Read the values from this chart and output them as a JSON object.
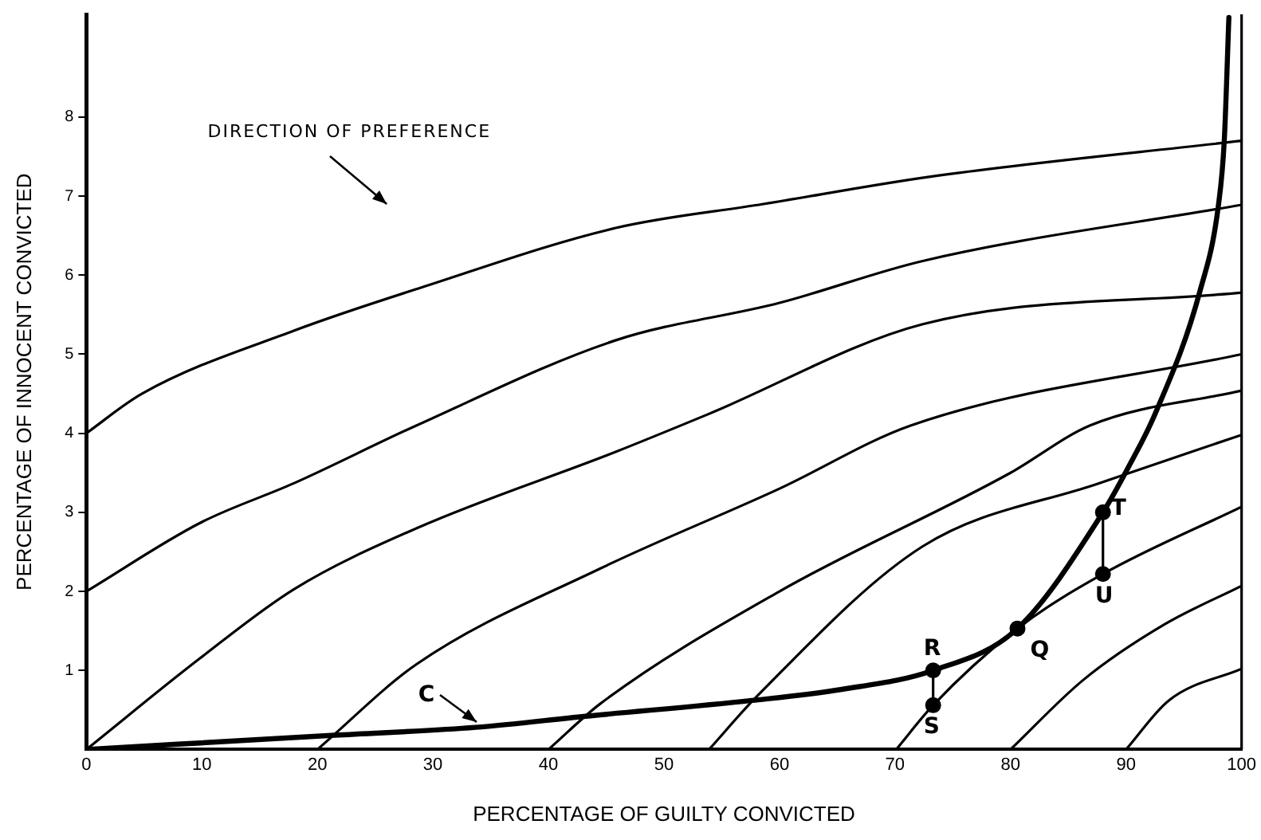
{
  "chart_data": {
    "type": "line",
    "xlabel": "PERCENTAGE OF GUILTY CONVICTED",
    "ylabel": "PERCENTAGE OF INNOCENT CONVICTED",
    "xlim": [
      0,
      100
    ],
    "xticks": [
      0,
      10,
      20,
      30,
      40,
      50,
      60,
      70,
      80,
      90,
      100
    ],
    "ylim": [
      0,
      9.3
    ],
    "yticks": [
      1,
      2,
      3,
      4,
      5,
      6,
      7,
      8
    ],
    "grid": false,
    "legend": false,
    "marker": "none",
    "line_style": "solid",
    "series": [
      {
        "color": "#000000",
        "x": [
          0,
          4.8,
          18,
          28.9,
          45.9,
          58.6,
          73.2,
          100
        ],
        "values": [
          4.0,
          4.5,
          5.3,
          5.84,
          6.6,
          6.9,
          7.25,
          7.7
        ]
      },
      {
        "color": "#000000",
        "x": [
          0,
          9.9,
          18,
          28.6,
          45.9,
          60,
          72.4,
          100
        ],
        "values": [
          2.0,
          2.87,
          3.37,
          4.1,
          5.18,
          5.65,
          6.18,
          6.89
        ]
      },
      {
        "color": "#000000",
        "x": [
          0,
          9.9,
          18,
          28.6,
          45.9,
          53.8,
          72.4,
          100
        ],
        "values": [
          0,
          1.16,
          2.03,
          2.8,
          3.77,
          4.24,
          5.38,
          5.78
        ]
      },
      {
        "color": "#000000",
        "x": [
          20,
          28.6,
          44.5,
          60,
          71.4,
          100
        ],
        "values": [
          0,
          1.08,
          2.29,
          3.3,
          4.1,
          5.0
        ]
      },
      {
        "color": "#000000",
        "x": [
          40,
          44.5,
          60,
          80,
          86.9,
          100
        ],
        "values": [
          0,
          0.58,
          2.0,
          3.5,
          4.1,
          4.54
        ]
      },
      {
        "color": "#000000",
        "x": [
          53.9,
          58.1,
          72.4,
          87.7,
          100
        ],
        "values": [
          0,
          0.68,
          2.57,
          3.37,
          3.98
        ]
      },
      {
        "color": "#000000",
        "x": [
          70.1,
          73.3,
          80.6,
          88,
          100
        ],
        "values": [
          0,
          0.56,
          1.53,
          2.22,
          3.07
        ]
      },
      {
        "color": "#000000",
        "x": [
          80,
          86.3,
          93.3,
          100
        ],
        "values": [
          0,
          0.88,
          1.58,
          2.07
        ]
      },
      {
        "color": "#000000",
        "x": [
          90,
          93.7,
          100
        ],
        "values": [
          0,
          0.62,
          1.02
        ]
      },
      {
        "color": "#000000",
        "x": [
          0,
          21.5,
          33.7,
          43.2,
          57.6,
          65.4,
          73.3,
          80.6,
          88,
          90.2,
          92.5,
          96.4,
          98.0,
          98.5,
          98.9
        ],
        "values": [
          0,
          0.18,
          0.28,
          0.42,
          0.62,
          0.76,
          1.0,
          1.53,
          3.0,
          3.57,
          4.24,
          5.8,
          6.89,
          7.7,
          9.26
        ]
      },
      {
        "color": "#000000",
        "x": [
          73.3,
          73.3
        ],
        "values": [
          0.56,
          1.0
        ]
      },
      {
        "color": "#000000",
        "x": [
          88,
          88
        ],
        "values": [
          2.22,
          3.0
        ]
      },
      {
        "type": "scatter",
        "color": "#000000",
        "marker": "circle",
        "x": [
          73.3,
          80.6,
          73.3,
          88,
          88
        ],
        "values": [
          1.0,
          1.53,
          0.56,
          3.0,
          2.22
        ]
      }
    ],
    "ref_lines": [
      {
        "axis": "x",
        "value": 100,
        "color": "#000000"
      }
    ],
    "annotations": [
      "DIRECTION OF PREFERENCE",
      {
        "text": "C",
        "x": 33.7,
        "y": 0.28
      },
      {
        "text": "R",
        "x": 73.3,
        "y": 1.0
      },
      {
        "text": "Q",
        "x": 80.6,
        "y": 1.53
      },
      {
        "text": "S",
        "x": 73.3,
        "y": 0.56
      },
      {
        "text": "T",
        "x": 88,
        "y": 3.0
      },
      {
        "text": "U",
        "x": 88,
        "y": 2.22
      }
    ]
  }
}
